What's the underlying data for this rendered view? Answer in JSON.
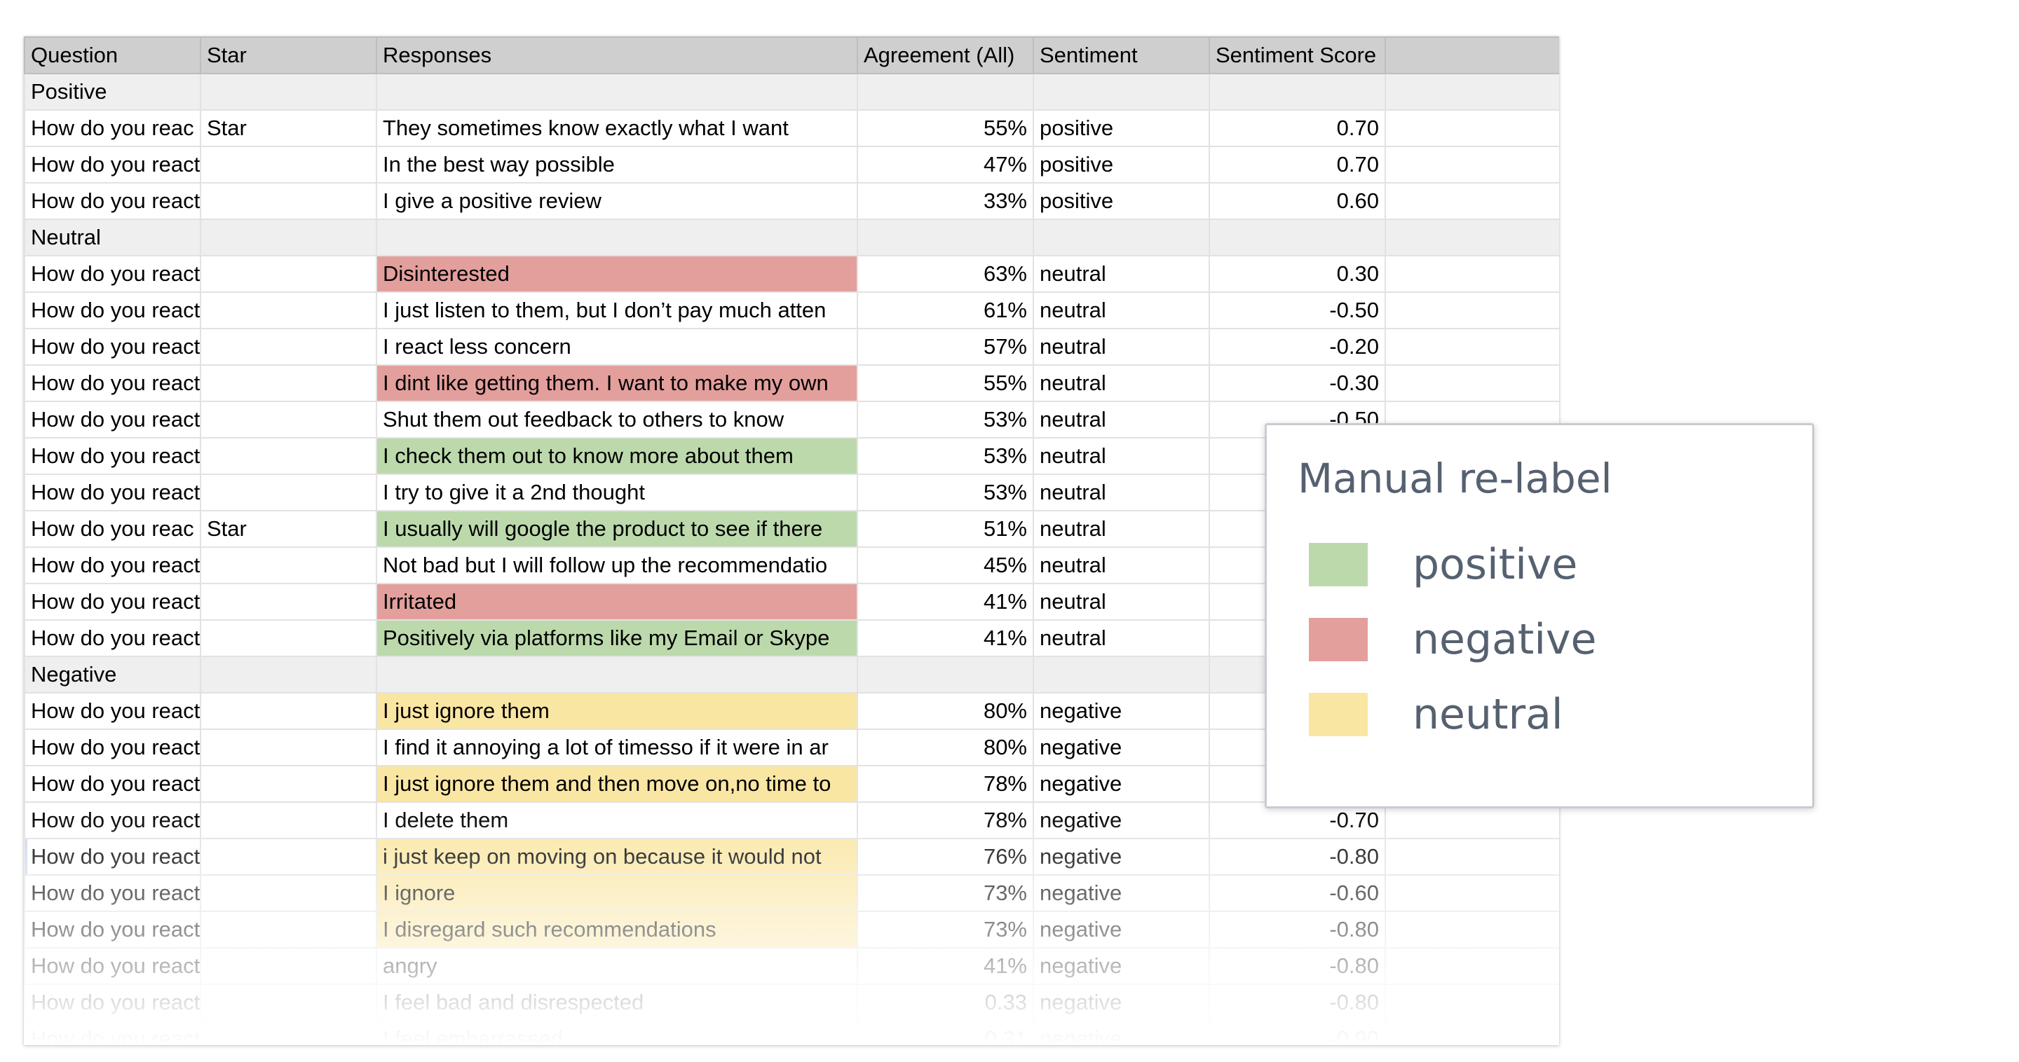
{
  "columns": [
    "Question",
    "Star",
    "Responses",
    "Agreement (All)",
    "Sentiment",
    "Sentiment Score",
    ""
  ],
  "rows": [
    {
      "type": "section",
      "question": "Positive"
    },
    {
      "question": "How do you reac",
      "star": "Star",
      "response": "They sometimes know exactly what I want",
      "agreement": "55%",
      "sentiment": "positive",
      "score": "0.70"
    },
    {
      "question": "How do you react when you get re",
      "star": "",
      "response": "In the best way possible",
      "agreement": "47%",
      "sentiment": "positive",
      "score": "0.70"
    },
    {
      "question": "How do you react when you get re",
      "star": "",
      "response": "I give a positive review",
      "agreement": "33%",
      "sentiment": "positive",
      "score": "0.60"
    },
    {
      "type": "section",
      "question": "Neutral"
    },
    {
      "question": "How do you react when you get re",
      "star": "",
      "response": "Disinterested",
      "agreement": "63%",
      "sentiment": "neutral",
      "score": "0.30",
      "label": "negative"
    },
    {
      "question": "How do you react when you get re",
      "star": "",
      "response": "I just listen to them, but I don’t pay much atten",
      "agreement": "61%",
      "sentiment": "neutral",
      "score": "-0.50"
    },
    {
      "question": "How do you react when you get re",
      "star": "",
      "response": "I react less concern",
      "agreement": "57%",
      "sentiment": "neutral",
      "score": "-0.20"
    },
    {
      "question": "How do you react when you get re",
      "star": "",
      "response": "I dint like getting them. I want to make my own",
      "agreement": "55%",
      "sentiment": "neutral",
      "score": "-0.30",
      "label": "negative"
    },
    {
      "question": "How do you react when you get re",
      "star": "",
      "response": "Shut them out feedback to others to know",
      "agreement": "53%",
      "sentiment": "neutral",
      "score": "-0.50"
    },
    {
      "question": "How do you react when you get re",
      "star": "",
      "response": "I check them out to know more about them",
      "agreement": "53%",
      "sentiment": "neutral",
      "score": "",
      "label": "positive"
    },
    {
      "question": "How do you react when you get re",
      "star": "",
      "response": "I try to give it a 2nd thought",
      "agreement": "53%",
      "sentiment": "neutral",
      "score": ""
    },
    {
      "question": "How do you reac",
      "star": "Star",
      "response": "I usually will google the product to see if there",
      "agreement": "51%",
      "sentiment": "neutral",
      "score": "",
      "label": "positive"
    },
    {
      "question": "How do you react when you get re",
      "star": "",
      "response": "Not bad but I will follow up the recommendatio",
      "agreement": "45%",
      "sentiment": "neutral",
      "score": ""
    },
    {
      "question": "How do you react when you get re",
      "star": "",
      "response": "Irritated",
      "agreement": "41%",
      "sentiment": "neutral",
      "score": "",
      "label": "negative"
    },
    {
      "question": "How do you react when you get re",
      "star": "",
      "response": "Positively via platforms like my Email or Skype",
      "agreement": "41%",
      "sentiment": "neutral",
      "score": "",
      "label": "positive"
    },
    {
      "type": "section",
      "question": "Negative"
    },
    {
      "question": "How do you react when you get re",
      "star": "",
      "response": "I just ignore them",
      "agreement": "80%",
      "sentiment": "negative",
      "score": "",
      "label": "neutral"
    },
    {
      "question": "How do you react when you get re",
      "star": "",
      "response": "I find it annoying a lot of timesso if it were in ar",
      "agreement": "80%",
      "sentiment": "negative",
      "score": ""
    },
    {
      "question": "How do you react when you get re",
      "star": "",
      "response": "I just ignore them and then move on,no time to",
      "agreement": "78%",
      "sentiment": "negative",
      "score": "",
      "label": "neutral"
    },
    {
      "question": "How do you react when you get re",
      "star": "",
      "response": "I delete them",
      "agreement": "78%",
      "sentiment": "negative",
      "score": "-0.70"
    },
    {
      "question": "How do you react when you get re",
      "star": "",
      "response": "i just keep on moving on because it would not",
      "agreement": "76%",
      "sentiment": "negative",
      "score": "-0.80",
      "label": "neutral",
      "selected": true
    },
    {
      "question": "How do you react when you get re",
      "star": "",
      "response": "I ignore",
      "agreement": "73%",
      "sentiment": "negative",
      "score": "-0.60",
      "label": "neutral"
    },
    {
      "question": "How do you react when you get re",
      "star": "",
      "response": "I disregard such recommendations",
      "agreement": "73%",
      "sentiment": "negative",
      "score": "-0.80",
      "label": "neutral"
    },
    {
      "question": "How do you react when you get re",
      "star": "",
      "response": "angry",
      "agreement": "41%",
      "sentiment": "negative",
      "score": "-0.80"
    },
    {
      "question": "How do you react when you get re",
      "star": "",
      "response": "I feel bad and disrespected",
      "agreement": "0.33",
      "sentiment": "negative",
      "score": "-0.80"
    },
    {
      "question": "How do you react when you get re",
      "star": "",
      "response": "I feel embarrassed",
      "agreement": "0.31",
      "sentiment": "negative",
      "score": "-0.90"
    }
  ],
  "legend": {
    "title": "Manual re-label",
    "items": [
      {
        "key": "positive",
        "label": "positive",
        "color": "#bcd9ac"
      },
      {
        "key": "negative",
        "label": "negative",
        "color": "#e39f9c"
      },
      {
        "key": "neutral",
        "label": "neutral",
        "color": "#fae6a3"
      }
    ]
  }
}
